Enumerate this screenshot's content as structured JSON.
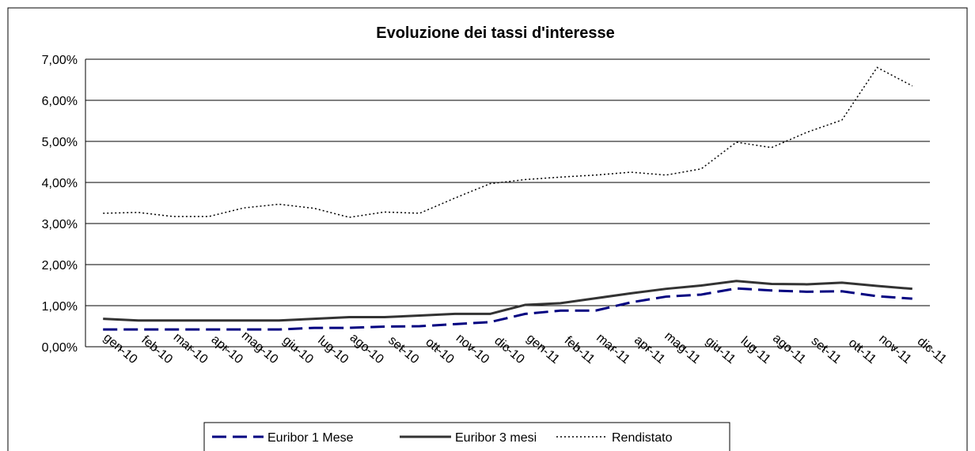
{
  "chart_data": {
    "type": "line",
    "title": "Evoluzione dei tassi d'interesse",
    "categories": [
      "gen-10",
      "feb-10",
      "mar-10",
      "apr-10",
      "mag-10",
      "giu-10",
      "lug-10",
      "ago-10",
      "set-10",
      "ott-10",
      "nov-10",
      "dic-10",
      "gen-11",
      "feb-11",
      "mar-11",
      "apr-11",
      "mag-11",
      "giu-11",
      "lug-11",
      "ago-11",
      "set-11",
      "ott-11",
      "nov-11",
      "dic-11"
    ],
    "series": [
      {
        "name": "Euribor 1 Mese",
        "color": "#000080",
        "dash": "dashed",
        "values": [
          0.42,
          0.42,
          0.42,
          0.42,
          0.42,
          0.42,
          0.46,
          0.46,
          0.49,
          0.5,
          0.55,
          0.6,
          0.8,
          0.88,
          0.88,
          1.08,
          1.22,
          1.27,
          1.42,
          1.37,
          1.34,
          1.35,
          1.23,
          1.17
        ]
      },
      {
        "name": "Euribor 3 mesi",
        "color": "#333333",
        "dash": "solid",
        "values": [
          0.68,
          0.64,
          0.64,
          0.64,
          0.64,
          0.64,
          0.68,
          0.72,
          0.72,
          0.76,
          0.8,
          0.8,
          1.02,
          1.06,
          1.18,
          1.3,
          1.41,
          1.49,
          1.6,
          1.53,
          1.52,
          1.56,
          1.48,
          1.41
        ]
      },
      {
        "name": "Rendistato",
        "color": "#000000",
        "dash": "dotted",
        "values": [
          3.25,
          3.27,
          3.17,
          3.17,
          3.38,
          3.47,
          3.37,
          3.15,
          3.28,
          3.25,
          3.62,
          3.97,
          4.07,
          4.13,
          4.18,
          4.25,
          4.18,
          4.33,
          4.98,
          4.85,
          5.22,
          5.52,
          6.8,
          6.35
        ]
      }
    ],
    "ylim": [
      0,
      7
    ],
    "yticks": [
      {
        "value": 0,
        "label": "0,00%"
      },
      {
        "value": 1,
        "label": "1,00%"
      },
      {
        "value": 2,
        "label": "2,00%"
      },
      {
        "value": 3,
        "label": "3,00%"
      },
      {
        "value": 4,
        "label": "4,00%"
      },
      {
        "value": 5,
        "label": "5,00%"
      },
      {
        "value": 6,
        "label": "6,00%"
      },
      {
        "value": 7,
        "label": "7,00%"
      }
    ],
    "grid": true,
    "legend": "bottom"
  }
}
